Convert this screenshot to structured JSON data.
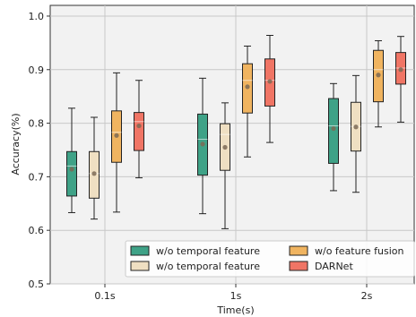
{
  "chart_data": {
    "type": "box",
    "xlabel": "Time(s)",
    "ylabel": "Accuracy(%)",
    "ylim": [
      0.5,
      1.02
    ],
    "yticks": [
      0.5,
      0.6,
      0.7,
      0.8,
      0.9,
      1.0
    ],
    "categories": [
      "0.1s",
      "1s",
      "2s"
    ],
    "grid": true,
    "legend_position": "lower-right",
    "series": [
      {
        "name": "w/o temporal feature",
        "color": "#3fa287",
        "boxes": [
          {
            "whislo": 0.633,
            "q1": 0.664,
            "med": 0.72,
            "q3": 0.747,
            "whishi": 0.828,
            "mean": 0.714
          },
          {
            "whislo": 0.631,
            "q1": 0.703,
            "med": 0.77,
            "q3": 0.817,
            "whishi": 0.884,
            "mean": 0.761
          },
          {
            "whislo": 0.674,
            "q1": 0.725,
            "med": 0.795,
            "q3": 0.846,
            "whishi": 0.874,
            "mean": 0.79
          }
        ]
      },
      {
        "name": "w/o temporal feature",
        "color": "#efdfc2",
        "boxes": [
          {
            "whislo": 0.621,
            "q1": 0.66,
            "med": 0.706,
            "q3": 0.747,
            "whishi": 0.811,
            "mean": 0.706
          },
          {
            "whislo": 0.603,
            "q1": 0.712,
            "med": 0.779,
            "q3": 0.799,
            "whishi": 0.838,
            "mean": 0.755
          },
          {
            "whislo": 0.671,
            "q1": 0.748,
            "med": 0.794,
            "q3": 0.839,
            "whishi": 0.889,
            "mean": 0.793
          }
        ]
      },
      {
        "name": "w/o feature fusion",
        "color": "#f0b460",
        "boxes": [
          {
            "whislo": 0.634,
            "q1": 0.727,
            "med": 0.783,
            "q3": 0.823,
            "whishi": 0.894,
            "mean": 0.777
          },
          {
            "whislo": 0.737,
            "q1": 0.819,
            "med": 0.88,
            "q3": 0.911,
            "whishi": 0.944,
            "mean": 0.868
          },
          {
            "whislo": 0.793,
            "q1": 0.84,
            "med": 0.9,
            "q3": 0.936,
            "whishi": 0.954,
            "mean": 0.89
          }
        ]
      },
      {
        "name": "DARNet",
        "color": "#f07565",
        "boxes": [
          {
            "whislo": 0.698,
            "q1": 0.749,
            "med": 0.803,
            "q3": 0.82,
            "whishi": 0.88,
            "mean": 0.795
          },
          {
            "whislo": 0.764,
            "q1": 0.832,
            "med": 0.88,
            "q3": 0.92,
            "whishi": 0.964,
            "mean": 0.878
          },
          {
            "whislo": 0.802,
            "q1": 0.873,
            "med": 0.903,
            "q3": 0.932,
            "whishi": 0.962,
            "mean": 0.9
          }
        ]
      }
    ]
  }
}
